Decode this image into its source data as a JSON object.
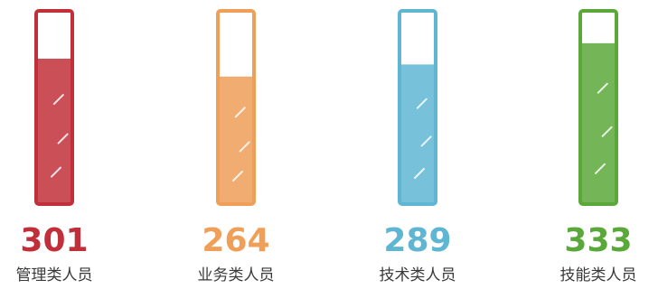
{
  "chart_data": {
    "type": "bar",
    "categories": [
      "管理类人员",
      "业务类人员",
      "技术类人员",
      "技能类人员"
    ],
    "values": [
      301,
      264,
      289,
      333
    ],
    "colors": [
      "#c1303a",
      "#ef9f58",
      "#5fb6d3",
      "#5aa83a"
    ],
    "ylim": [
      0,
      400
    ],
    "grid": false,
    "title": "",
    "xlabel": "",
    "ylabel": ""
  }
}
